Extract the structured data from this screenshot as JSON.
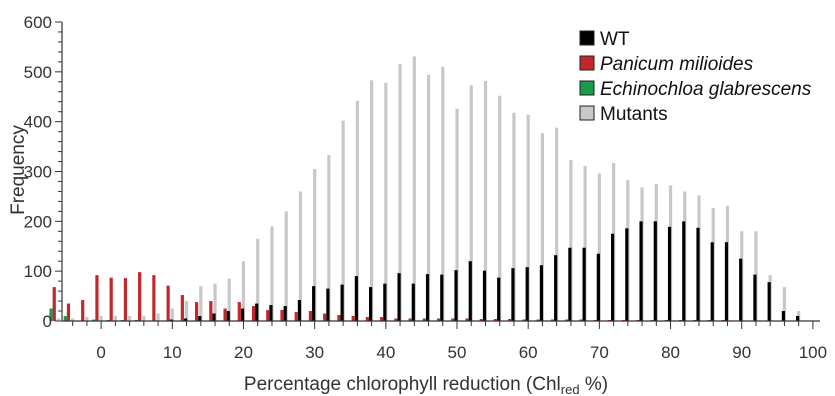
{
  "chart_data": {
    "type": "bar",
    "xlabel": "Percentage chlorophyll reduction (Chl",
    "xlabel_sub": "red",
    "xlabel_tail": " %)",
    "ylabel": "Frequency",
    "xlim": [
      -5.5,
      101
    ],
    "ylim": [
      0,
      600
    ],
    "x_ticks": [
      0,
      10,
      20,
      30,
      40,
      50,
      60,
      70,
      80,
      90,
      100
    ],
    "y_ticks": [
      0,
      100,
      200,
      300,
      400,
      500,
      600
    ],
    "grid": false,
    "legend_position": "top-right",
    "x": [
      -6,
      -4,
      -2,
      0,
      2,
      4,
      6,
      8,
      10,
      12,
      14,
      16,
      18,
      20,
      22,
      24,
      26,
      28,
      30,
      32,
      34,
      36,
      38,
      40,
      42,
      44,
      46,
      48,
      50,
      52,
      54,
      56,
      58,
      60,
      62,
      64,
      66,
      68,
      70,
      72,
      74,
      76,
      78,
      80,
      82,
      84,
      86,
      88,
      90,
      92,
      94,
      96,
      98
    ],
    "series": [
      {
        "name": "Mutants",
        "color": "#c8c8c8",
        "values": [
          5,
          5,
          8,
          10,
          10,
          10,
          10,
          15,
          25,
          40,
          70,
          75,
          85,
          120,
          165,
          190,
          220,
          260,
          305,
          333,
          402,
          442,
          483,
          478,
          516,
          531,
          494,
          510,
          426,
          473,
          482,
          452,
          418,
          414,
          377,
          388,
          323,
          311,
          296,
          317,
          283,
          268,
          275,
          272,
          260,
          252,
          227,
          231,
          180,
          180,
          92,
          68,
          20
        ]
      },
      {
        "name": "WT",
        "color": "#000000",
        "values": [
          0,
          0,
          0,
          0,
          0,
          0,
          0,
          0,
          3,
          5,
          10,
          15,
          20,
          25,
          35,
          32,
          30,
          42,
          70,
          65,
          73,
          90,
          68,
          75,
          96,
          75,
          94,
          93,
          102,
          120,
          101,
          87,
          106,
          108,
          112,
          132,
          147,
          147,
          135,
          175,
          186,
          200,
          200,
          189,
          200,
          187,
          158,
          158,
          125,
          93,
          78,
          20,
          10
        ]
      },
      {
        "name": "Panicum milioides",
        "color": "#c1272d",
        "values": [
          68,
          35,
          42,
          92,
          87,
          86,
          98,
          92,
          71,
          52,
          38,
          40,
          25,
          38,
          30,
          22,
          22,
          18,
          20,
          15,
          12,
          10,
          8,
          8,
          5,
          5,
          5,
          5,
          5,
          5,
          4,
          4,
          4,
          3,
          3,
          3,
          3,
          3,
          2,
          2,
          2,
          2,
          2,
          2,
          2,
          2,
          2,
          2,
          0,
          0,
          0,
          0,
          0
        ]
      },
      {
        "name": "Echinochloa glabrescens",
        "color": "#1a9b4a",
        "values": [
          25,
          10,
          0,
          3,
          2,
          2,
          2,
          0,
          0,
          0,
          0,
          0,
          0,
          0,
          0,
          0,
          0,
          0,
          0,
          0,
          0,
          0,
          0,
          0,
          0,
          0,
          0,
          0,
          0,
          0,
          0,
          0,
          0,
          0,
          0,
          0,
          0,
          0,
          0,
          0,
          0,
          0,
          0,
          0,
          0,
          0,
          0,
          0,
          0,
          0,
          0,
          0,
          0
        ]
      }
    ]
  },
  "legend": {
    "items": [
      {
        "label": "WT",
        "color": "#000000",
        "italic": false
      },
      {
        "label": "Panicum milioides",
        "color": "#c1272d",
        "italic": true
      },
      {
        "label": "Echinochloa glabrescens",
        "color": "#1a9b4a",
        "italic": true
      },
      {
        "label": "Mutants",
        "color": "#c8c8c8",
        "italic": false
      }
    ]
  }
}
